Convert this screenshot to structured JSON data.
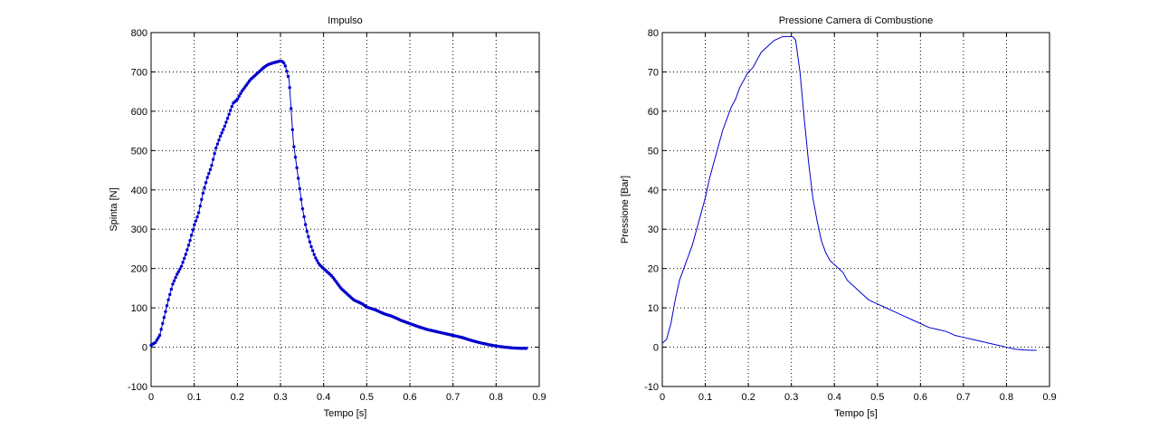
{
  "chart_data": [
    {
      "type": "line",
      "title": "Impulso",
      "xlabel": "Tempo [s]",
      "ylabel": "Spinta [N]",
      "xlim": [
        0,
        0.9
      ],
      "ylim": [
        -100,
        800
      ],
      "xticks": [
        "0",
        "0.1",
        "0.2",
        "0.3",
        "0.4",
        "0.5",
        "0.6",
        "0.7",
        "0.8",
        "0.9"
      ],
      "yticks": [
        "-100",
        "0",
        "100",
        "200",
        "300",
        "400",
        "500",
        "600",
        "700",
        "800"
      ],
      "grid": true,
      "markers": true,
      "color": "#0000cc",
      "series": [
        {
          "x": [
            0,
            0.01,
            0.02,
            0.03,
            0.04,
            0.05,
            0.06,
            0.07,
            0.08,
            0.09,
            0.1,
            0.11,
            0.12,
            0.13,
            0.14,
            0.15,
            0.16,
            0.17,
            0.18,
            0.19,
            0.2,
            0.21,
            0.22,
            0.23,
            0.24,
            0.25,
            0.26,
            0.27,
            0.28,
            0.29,
            0.3,
            0.305,
            0.31,
            0.32,
            0.33,
            0.34,
            0.35,
            0.36,
            0.37,
            0.38,
            0.39,
            0.4,
            0.41,
            0.42,
            0.43,
            0.44,
            0.45,
            0.46,
            0.47,
            0.48,
            0.49,
            0.5,
            0.52,
            0.54,
            0.56,
            0.58,
            0.6,
            0.62,
            0.64,
            0.66,
            0.68,
            0.7,
            0.72,
            0.74,
            0.76,
            0.78,
            0.8,
            0.82,
            0.84,
            0.86,
            0.87
          ],
          "y": [
            5,
            12,
            30,
            75,
            120,
            160,
            185,
            205,
            235,
            270,
            310,
            340,
            390,
            430,
            460,
            505,
            535,
            560,
            590,
            620,
            630,
            650,
            665,
            680,
            690,
            700,
            710,
            718,
            722,
            725,
            728,
            726,
            720,
            680,
            520,
            440,
            360,
            300,
            260,
            230,
            210,
            200,
            190,
            180,
            165,
            150,
            140,
            130,
            120,
            115,
            110,
            102,
            95,
            85,
            78,
            68,
            60,
            52,
            45,
            40,
            35,
            30,
            25,
            18,
            12,
            7,
            3,
            0,
            -2,
            -3,
            -3
          ]
        }
      ]
    },
    {
      "type": "line",
      "title": "Pressione Camera di Combustione",
      "xlabel": "Tempo [s]",
      "ylabel": "Pressione [Bar]",
      "xlim": [
        0,
        0.9
      ],
      "ylim": [
        -10,
        80
      ],
      "xticks": [
        "0",
        "0.1",
        "0.2",
        "0.3",
        "0.4",
        "0.5",
        "0.6",
        "0.7",
        "0.8",
        "0.9"
      ],
      "yticks": [
        "-10",
        "0",
        "10",
        "20",
        "30",
        "40",
        "50",
        "60",
        "70",
        "80"
      ],
      "grid": true,
      "markers": false,
      "color": "#0000cc",
      "series": [
        {
          "x": [
            0,
            0.01,
            0.02,
            0.03,
            0.04,
            0.05,
            0.06,
            0.07,
            0.08,
            0.09,
            0.1,
            0.11,
            0.12,
            0.13,
            0.14,
            0.15,
            0.16,
            0.17,
            0.18,
            0.19,
            0.2,
            0.21,
            0.22,
            0.23,
            0.24,
            0.25,
            0.26,
            0.27,
            0.28,
            0.29,
            0.3,
            0.305,
            0.31,
            0.32,
            0.33,
            0.34,
            0.35,
            0.36,
            0.37,
            0.38,
            0.39,
            0.4,
            0.41,
            0.42,
            0.43,
            0.44,
            0.45,
            0.46,
            0.47,
            0.48,
            0.49,
            0.5,
            0.52,
            0.54,
            0.56,
            0.58,
            0.6,
            0.62,
            0.64,
            0.66,
            0.68,
            0.7,
            0.72,
            0.74,
            0.76,
            0.78,
            0.8,
            0.82,
            0.84,
            0.86,
            0.87
          ],
          "y": [
            1,
            2,
            6,
            12,
            17,
            20,
            23,
            26,
            30,
            34,
            38,
            43,
            47,
            51,
            55,
            58,
            61,
            63,
            66,
            68,
            70,
            71,
            73,
            75,
            76,
            77,
            78,
            78.5,
            79,
            79,
            79,
            78.8,
            78,
            70,
            58,
            47,
            38,
            32,
            27,
            24,
            22,
            21,
            20,
            19,
            17,
            16,
            15,
            14,
            13,
            12,
            11.5,
            11,
            10,
            9,
            8,
            7,
            6,
            5,
            4.5,
            4,
            3,
            2.5,
            2,
            1.5,
            1,
            0.5,
            0,
            -0.5,
            -0.7,
            -0.8,
            -0.8
          ]
        }
      ]
    }
  ]
}
